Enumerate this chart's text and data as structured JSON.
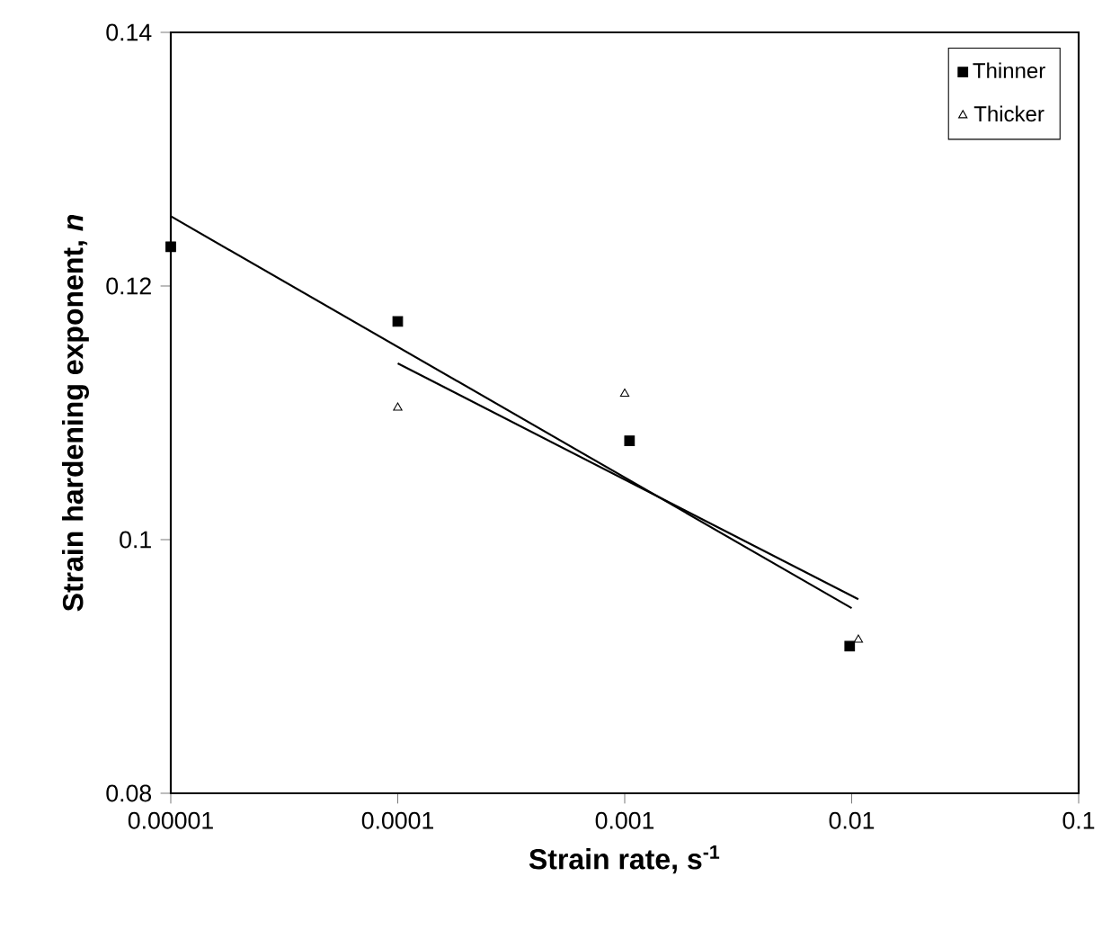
{
  "chart_data": {
    "type": "scatter",
    "xlabel": "Strain rate, s$^{-1}$",
    "ylabel": "Strain hardening exponent, *n*",
    "log": "x",
    "xlim": [
      1e-05,
      0.1
    ],
    "ylim": [
      0.08,
      0.14
    ],
    "xticks": [
      {
        "value": 1e-05,
        "label": "0.00001"
      },
      {
        "value": 0.0001,
        "label": "0.0001"
      },
      {
        "value": 0.001,
        "label": "0.001"
      },
      {
        "value": 0.01,
        "label": "0.01"
      },
      {
        "value": 0.1,
        "label": "0.1"
      }
    ],
    "yticks": [
      0.08,
      0.1,
      0.12,
      0.14
    ],
    "grid": false,
    "legend": "top right",
    "series": [
      {
        "name": "Thinner",
        "marker": "square",
        "color": "#000000",
        "x": [
          1e-05,
          0.0001,
          0.00105,
          0.0098
        ],
        "values": [
          0.1231,
          0.1172,
          0.1078,
          0.0916
        ]
      },
      {
        "name": "Thicker",
        "marker": "triangle",
        "color": "#000000",
        "x": [
          0.0001,
          0.001,
          0.0107
        ],
        "values": [
          0.1104,
          0.1115,
          0.0921
        ]
      },
      {
        "type": "line",
        "marker": "none",
        "line_style": "solid",
        "color": "#000000",
        "x": [
          1e-05,
          0.01
        ],
        "values": [
          0.1255,
          0.0946
        ]
      },
      {
        "type": "line",
        "marker": "none",
        "line_style": "solid",
        "color": "#000000",
        "x": [
          0.0001,
          0.0107
        ],
        "values": [
          0.1139,
          0.0953
        ]
      }
    ]
  }
}
